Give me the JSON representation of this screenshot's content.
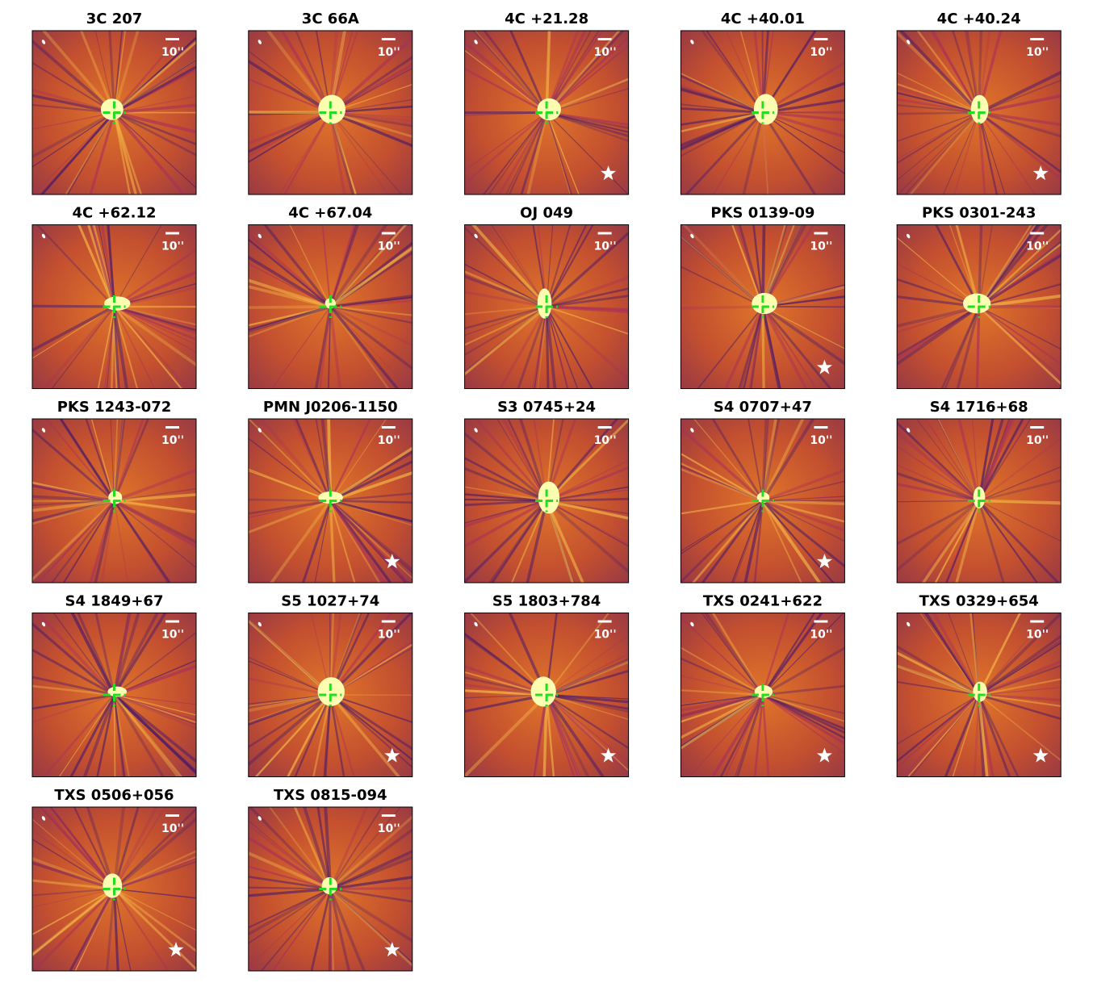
{
  "scale_label": "10''",
  "panels": [
    {
      "title": "3C 207",
      "star": false
    },
    {
      "title": "3C 66A",
      "star": false
    },
    {
      "title": "4C +21.28",
      "star": true
    },
    {
      "title": "4C +40.01",
      "star": false
    },
    {
      "title": "4C +40.24",
      "star": true
    },
    {
      "title": "4C +62.12",
      "star": false
    },
    {
      "title": "4C +67.04",
      "star": false
    },
    {
      "title": "OJ 049",
      "star": false
    },
    {
      "title": "PKS 0139-09",
      "star": true
    },
    {
      "title": "PKS 0301-243",
      "star": false
    },
    {
      "title": "PKS 1243-072",
      "star": false
    },
    {
      "title": "PMN J0206-1150",
      "star": true
    },
    {
      "title": "S3 0745+24",
      "star": false
    },
    {
      "title": "S4 0707+47",
      "star": true
    },
    {
      "title": "S4 1716+68",
      "star": false
    },
    {
      "title": "S4 1849+67",
      "star": false
    },
    {
      "title": "S5 1027+74",
      "star": true
    },
    {
      "title": "S5 1803+784",
      "star": true
    },
    {
      "title": "TXS 0241+622",
      "star": true
    },
    {
      "title": "TXS 0329+654",
      "star": true
    },
    {
      "title": "TXS 0506+056",
      "star": true
    },
    {
      "title": "TXS 0815-094",
      "star": true
    }
  ]
}
